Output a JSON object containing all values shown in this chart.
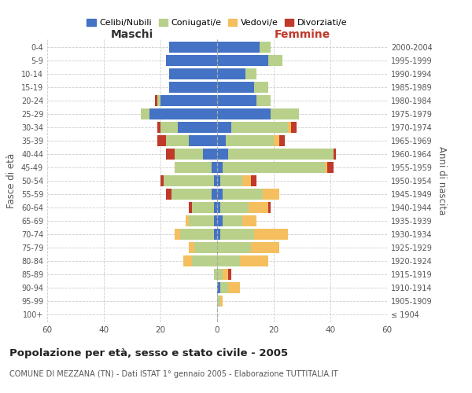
{
  "age_groups": [
    "100+",
    "95-99",
    "90-94",
    "85-89",
    "80-84",
    "75-79",
    "70-74",
    "65-69",
    "60-64",
    "55-59",
    "50-54",
    "45-49",
    "40-44",
    "35-39",
    "30-34",
    "25-29",
    "20-24",
    "15-19",
    "10-14",
    "5-9",
    "0-4"
  ],
  "birth_years": [
    "≤ 1904",
    "1905-1909",
    "1910-1914",
    "1915-1919",
    "1920-1924",
    "1925-1929",
    "1930-1934",
    "1935-1939",
    "1940-1944",
    "1945-1949",
    "1950-1954",
    "1955-1959",
    "1960-1964",
    "1965-1969",
    "1970-1974",
    "1975-1979",
    "1980-1984",
    "1985-1989",
    "1990-1994",
    "1995-1999",
    "2000-2004"
  ],
  "males": {
    "celibi": [
      0,
      0,
      0,
      0,
      0,
      0,
      1,
      1,
      1,
      2,
      1,
      2,
      5,
      10,
      14,
      24,
      20,
      17,
      17,
      18,
      17
    ],
    "coniugati": [
      0,
      0,
      0,
      1,
      9,
      8,
      12,
      9,
      8,
      14,
      18,
      13,
      10,
      8,
      6,
      3,
      1,
      0,
      0,
      0,
      0
    ],
    "vedovi": [
      0,
      0,
      0,
      0,
      3,
      2,
      2,
      1,
      0,
      0,
      0,
      0,
      0,
      0,
      0,
      0,
      0,
      0,
      0,
      0,
      0
    ],
    "divorziati": [
      0,
      0,
      0,
      0,
      0,
      0,
      0,
      0,
      1,
      2,
      1,
      0,
      3,
      3,
      1,
      0,
      1,
      0,
      0,
      0,
      0
    ]
  },
  "females": {
    "nubili": [
      0,
      0,
      1,
      0,
      0,
      0,
      1,
      2,
      1,
      2,
      1,
      2,
      4,
      3,
      5,
      19,
      14,
      13,
      10,
      18,
      15
    ],
    "coniugate": [
      0,
      1,
      3,
      2,
      8,
      12,
      12,
      7,
      10,
      14,
      8,
      36,
      37,
      17,
      20,
      10,
      5,
      5,
      4,
      5,
      4
    ],
    "vedove": [
      0,
      1,
      4,
      2,
      10,
      10,
      12,
      5,
      7,
      6,
      3,
      1,
      0,
      2,
      1,
      0,
      0,
      0,
      0,
      0,
      0
    ],
    "divorziate": [
      0,
      0,
      0,
      1,
      0,
      0,
      0,
      0,
      1,
      0,
      2,
      2,
      1,
      2,
      2,
      0,
      0,
      0,
      0,
      0,
      0
    ]
  },
  "colors": {
    "celibi": "#4472c4",
    "coniugati": "#b8d08a",
    "vedovi": "#f5bf5f",
    "divorziati": "#c0392b"
  },
  "xlim": 60,
  "title": "Popolazione per età, sesso e stato civile - 2005",
  "subtitle": "COMUNE DI MEZZANA (TN) - Dati ISTAT 1° gennaio 2005 - Elaborazione TUTTITALIA.IT",
  "xlabel_left": "Maschi",
  "xlabel_right": "Femmine",
  "ylabel_left": "Fasce di età",
  "ylabel_right": "Anni di nascita",
  "legend_labels": [
    "Celibi/Nubili",
    "Coniugati/e",
    "Vedovi/e",
    "Divorziati/e"
  ],
  "bg_color": "#ffffff",
  "grid_color": "#cccccc"
}
